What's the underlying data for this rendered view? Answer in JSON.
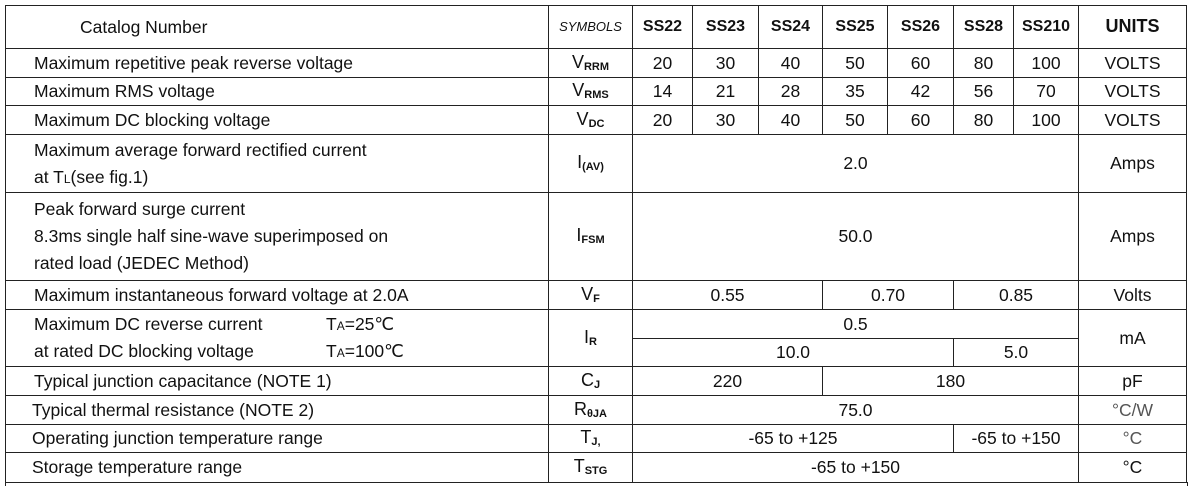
{
  "header": {
    "catalog": "Catalog  Number",
    "symbols": "SYMBOLS",
    "parts": [
      "SS22",
      "SS23",
      "SS24",
      "SS25",
      "SS26",
      "SS28",
      "SS210"
    ],
    "units": "UNITS"
  },
  "rows": [
    {
      "param": "Maximum repetitive peak reverse voltage",
      "sym": "V",
      "sub": "RRM",
      "values": [
        "20",
        "30",
        "40",
        "50",
        "60",
        "80",
        "100"
      ],
      "unit": "VOLTS"
    },
    {
      "param": "Maximum RMS voltage",
      "sym": "V",
      "sub": "RMS",
      "values": [
        "14",
        "21",
        "28",
        "35",
        "42",
        "56",
        "70"
      ],
      "unit": "VOLTS"
    },
    {
      "param": "Maximum DC blocking voltage",
      "sym": "V",
      "sub": "DC",
      "values": [
        "20",
        "30",
        "40",
        "50",
        "60",
        "80",
        "100"
      ],
      "unit": "VOLTS"
    },
    {
      "param": [
        "Maximum average forward rectified current",
        "at T",
        "L",
        "(see fig.1)"
      ],
      "sym": "I",
      "sub": "(AV)",
      "value": "2.0",
      "unit": "Amps"
    },
    {
      "param": [
        "Peak forward surge current",
        "8.3ms single half sine-wave superimposed on",
        "rated load (JEDEC Method)"
      ],
      "sym": "I",
      "sub": "FSM",
      "value": "50.0",
      "unit": "Amps"
    },
    {
      "param": "Maximum instantaneous forward voltage at 2.0A",
      "sym": "V",
      "sub": "F",
      "values": [
        "0.55",
        "0.70",
        "0.85"
      ],
      "unit": "Volts"
    },
    {
      "param": [
        "Maximum DC reverse current",
        "T",
        "A",
        "=25℃",
        "at rated DC blocking voltage",
        "T",
        "A",
        "=100℃"
      ],
      "sym": "I",
      "sub": "R",
      "values": [
        "0.5",
        "10.0",
        "5.0"
      ],
      "unit": "mA"
    },
    {
      "param": "Typical junction capacitance (NOTE 1)",
      "sym": "C",
      "sub": "J",
      "values": [
        "220",
        "180"
      ],
      "unit": "pF"
    },
    {
      "param": "Typical thermal resistance (NOTE 2)",
      "sym": "R",
      "sub": "θJA",
      "value": "75.0",
      "unit": "°C/W"
    },
    {
      "param": "Operating junction temperature range",
      "sym": "T",
      "sub": "J,",
      "values": [
        "-65 to +125",
        "-65 to +150"
      ],
      "unit": "°C"
    },
    {
      "param": "Storage temperature range",
      "sym": "T",
      "sub": "STG",
      "value": "-65 to +150",
      "unit": "°C"
    }
  ]
}
